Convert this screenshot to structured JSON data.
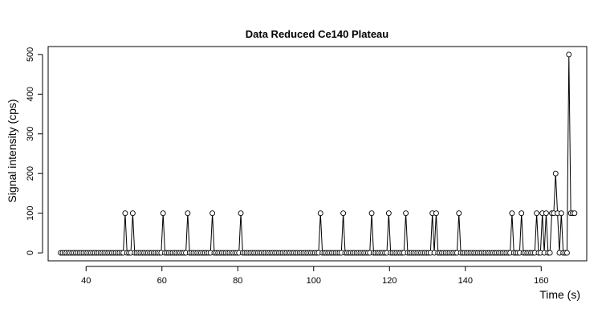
{
  "chart_data": {
    "type": "line",
    "title": "Data Reduced Ce140 Plateau",
    "xlabel": "Time (s)",
    "ylabel": "Signal intensity (cps)",
    "xlim": [
      30,
      172
    ],
    "ylim": [
      -20,
      520
    ],
    "x_ticks": [
      40,
      60,
      80,
      100,
      120,
      140,
      160
    ],
    "y_ticks": [
      0,
      100,
      200,
      300,
      400,
      500
    ],
    "grid": false,
    "legend": "none",
    "series_style": "points-and-lines",
    "baseline_range": [
      33.3,
      168.9
    ],
    "baseline_step": 0.5,
    "baseline_value": 0,
    "spikes": [
      {
        "x": 50.5,
        "y": 100
      },
      {
        "x": 52.5,
        "y": 100
      },
      {
        "x": 60.5,
        "y": 100
      },
      {
        "x": 67.0,
        "y": 100
      },
      {
        "x": 73.5,
        "y": 100
      },
      {
        "x": 81.0,
        "y": 100
      },
      {
        "x": 102.0,
        "y": 100
      },
      {
        "x": 108.0,
        "y": 100
      },
      {
        "x": 115.5,
        "y": 100
      },
      {
        "x": 120.0,
        "y": 100
      },
      {
        "x": 124.5,
        "y": 100
      },
      {
        "x": 131.5,
        "y": 100
      },
      {
        "x": 132.5,
        "y": 100
      },
      {
        "x": 138.5,
        "y": 100
      },
      {
        "x": 152.5,
        "y": 100
      },
      {
        "x": 155.0,
        "y": 100
      },
      {
        "x": 159.0,
        "y": 100
      },
      {
        "x": 160.5,
        "y": 100
      },
      {
        "x": 161.5,
        "y": 100
      },
      {
        "x": 163.0,
        "y": 100
      },
      {
        "x": 163.5,
        "y": 100
      },
      {
        "x": 164.0,
        "y": 200
      },
      {
        "x": 164.5,
        "y": 100
      },
      {
        "x": 165.5,
        "y": 100
      },
      {
        "x": 167.5,
        "y": 500
      },
      {
        "x": 168.0,
        "y": 100
      },
      {
        "x": 168.5,
        "y": 100
      },
      {
        "x": 169.0,
        "y": 100
      }
    ],
    "colors": {
      "line": "#000000",
      "point_stroke": "#000000",
      "point_fill": "#ffffff",
      "frame": "#000000"
    }
  }
}
